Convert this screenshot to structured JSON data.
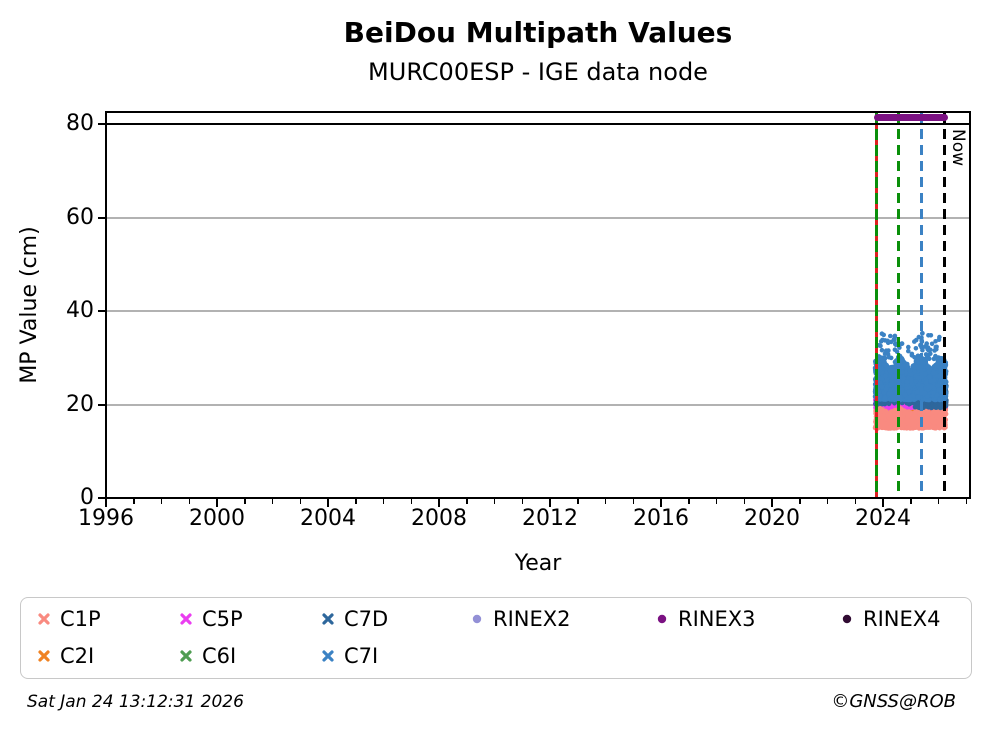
{
  "header": {
    "title": "BeiDou Multipath Values",
    "subtitle": "MURC00ESP - IGE data node"
  },
  "footer": {
    "timestamp": "Sat Jan 24 13:12:31 2026",
    "credit": "©GNSS@ROB"
  },
  "chart_data": {
    "type": "scatter",
    "title": "BeiDou Multipath Values",
    "subtitle": "MURC00ESP - IGE data node",
    "xlabel": "Year",
    "ylabel": "MP Value (cm)",
    "xlim": [
      1996,
      2027.15
    ],
    "ylim": [
      0,
      82.7
    ],
    "xticks_major": [
      1996,
      2000,
      2004,
      2008,
      2012,
      2016,
      2020,
      2024
    ],
    "xticks_minor_step": 1,
    "yticks": [
      0,
      20,
      40,
      60,
      80
    ],
    "grid": {
      "horizontal": true,
      "vertical": false,
      "color": "#b2b2b2"
    },
    "threshold_line": {
      "y": 80,
      "color": "#000000"
    },
    "availability_bar": {
      "label": "RINEX3",
      "y": 81.4,
      "x_range": [
        2023.68,
        2026.34
      ],
      "color": "#7b1182"
    },
    "event_lines": [
      {
        "x": 2023.78,
        "style": "dashed",
        "colors": [
          "#0a8f0a",
          "#dd2020"
        ],
        "label": ""
      },
      {
        "x": 2024.57,
        "style": "dashed",
        "colors": [
          "#0a8f0a"
        ],
        "label": ""
      },
      {
        "x": 2025.37,
        "style": "dashed",
        "colors": [
          "#3b82c4"
        ],
        "label": ""
      },
      {
        "x": 2026.23,
        "style": "dashed",
        "colors": [
          "#000000"
        ],
        "label": "Now"
      }
    ],
    "series": [
      {
        "name": "C2I",
        "color": "#f08222",
        "x_range": [
          2023.72,
          2026.27
        ],
        "value_range": [
          17.6,
          20.4
        ],
        "n": 260,
        "r": 2.2
      },
      {
        "name": "C5P",
        "color": "#ea3df0",
        "x_range": [
          2023.72,
          2026.27
        ],
        "value_range": [
          19.2,
          22.3
        ],
        "n": 700,
        "r": 2.4,
        "wave": 0.6
      },
      {
        "name": "C6I",
        "color": "#4f9d52",
        "x_range": [
          2023.75,
          2026.25
        ],
        "value_range": [
          20.4,
          22.8
        ],
        "n": 55,
        "r": 2.2
      },
      {
        "name": "C1P",
        "color": "#f98a80",
        "x_range": [
          2023.72,
          2026.27
        ],
        "value_range": [
          14.9,
          19.2
        ],
        "n": 850,
        "r": 2.4,
        "wave": 0.5
      },
      {
        "name": "C7D",
        "color": "#2e679c",
        "x_range": [
          2023.72,
          2026.27
        ],
        "value_range": [
          20.0,
          26.0
        ],
        "n": 420,
        "r": 2.3
      },
      {
        "name": "C7D",
        "color": "#2e679c",
        "x_range": [
          2025.15,
          2026.28
        ],
        "value_range": [
          19.3,
          24.4
        ],
        "n": 430,
        "r": 2.5
      },
      {
        "name": "C7I",
        "color": "#3b82c4",
        "x_range": [
          2023.72,
          2026.27
        ],
        "value_range": [
          21.0,
          30.2
        ],
        "n": 1750,
        "r": 2.5,
        "wave": 1.3
      },
      {
        "name": "C7I",
        "color": "#3b82c4",
        "x_range": [
          2023.85,
          2026.15
        ],
        "value_range": [
          29.5,
          35.4
        ],
        "n": 85,
        "r": 2.3
      }
    ],
    "legend": {
      "position": "bottom",
      "columns": [
        [
          {
            "label": "C1P",
            "marker": "x",
            "color": "#f98a80"
          },
          {
            "label": "C2I",
            "marker": "x",
            "color": "#f08222"
          }
        ],
        [
          {
            "label": "C5P",
            "marker": "x",
            "color": "#ea3df0"
          },
          {
            "label": "C6I",
            "marker": "x",
            "color": "#4f9d52"
          }
        ],
        [
          {
            "label": "C7D",
            "marker": "x",
            "color": "#2e679c"
          },
          {
            "label": "C7I",
            "marker": "x",
            "color": "#3b82c4"
          }
        ],
        [
          {
            "label": "RINEX2",
            "marker": "circle",
            "color": "#9390d6"
          }
        ],
        [
          {
            "label": "RINEX3",
            "marker": "circle",
            "color": "#7b1182"
          }
        ],
        [
          {
            "label": "RINEX4",
            "marker": "circle",
            "color": "#310b33"
          }
        ]
      ]
    }
  }
}
